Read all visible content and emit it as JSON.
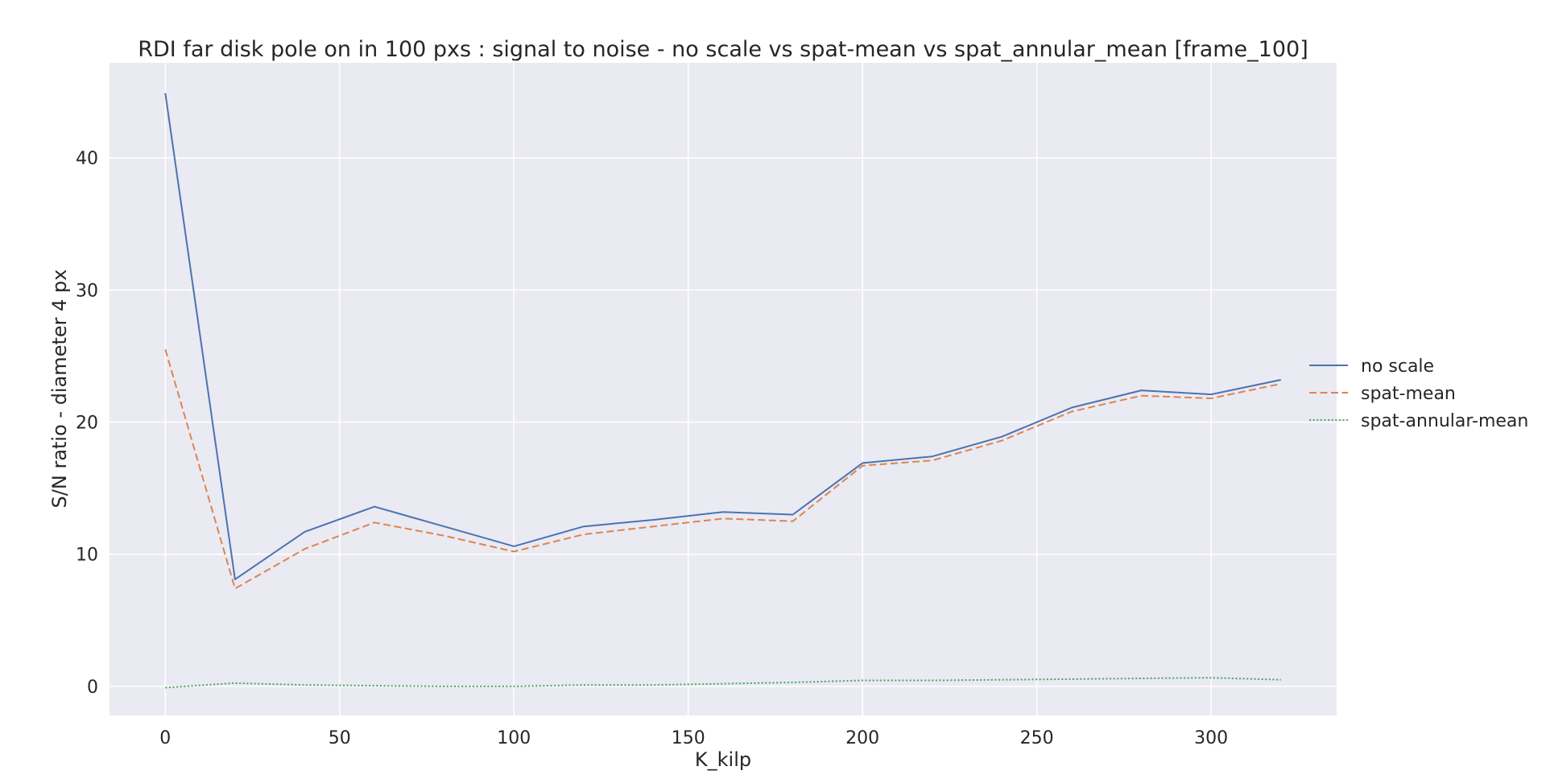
{
  "chart_data": {
    "type": "line",
    "title": "RDI far disk pole on in 100 pxs : signal to noise - no scale vs spat-mean vs spat_annular_mean [frame_100]",
    "xlabel": "K_kilp",
    "ylabel": "S/N ratio - diameter 4 px",
    "xlim": [
      -16,
      336
    ],
    "ylim": [
      -2.2,
      47.2
    ],
    "xticks": [
      0,
      50,
      100,
      150,
      200,
      250,
      300
    ],
    "yticks": [
      0,
      10,
      20,
      30,
      40
    ],
    "grid": true,
    "legend_position": "right",
    "background_color": "#eaeaf2",
    "grid_color": "#ffffff",
    "x": [
      0,
      20,
      40,
      60,
      80,
      100,
      120,
      140,
      160,
      180,
      200,
      220,
      240,
      260,
      280,
      300,
      320
    ],
    "series": [
      {
        "name": "no scale",
        "style": "solid",
        "color": "#4c72b0",
        "values": [
          44.9,
          8.1,
          11.7,
          13.6,
          12.1,
          10.6,
          12.1,
          12.6,
          13.2,
          13.0,
          16.9,
          17.4,
          18.9,
          21.1,
          22.4,
          22.1,
          23.2
        ]
      },
      {
        "name": "spat-mean",
        "style": "dashed",
        "color": "#dd8452",
        "values": [
          25.5,
          7.4,
          10.4,
          12.4,
          11.4,
          10.2,
          11.5,
          12.1,
          12.7,
          12.5,
          16.7,
          17.1,
          18.6,
          20.8,
          22.0,
          21.8,
          22.9
        ]
      },
      {
        "name": "spat-annular-mean",
        "style": "dotted",
        "color": "#55a868",
        "values": [
          -0.1,
          0.25,
          0.1,
          0.05,
          0.0,
          0.0,
          0.1,
          0.1,
          0.2,
          0.3,
          0.45,
          0.45,
          0.5,
          0.55,
          0.6,
          0.65,
          0.5
        ]
      }
    ]
  }
}
